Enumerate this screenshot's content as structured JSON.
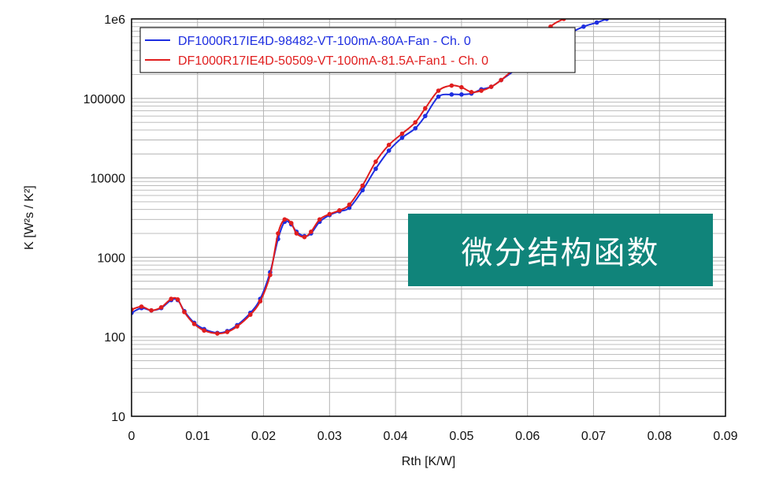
{
  "colors": {
    "background": "#ffffff",
    "grid": "#b4b4b4",
    "axis": "#000000",
    "overlay_bg": "#10847a",
    "overlay_text": "#ffffff"
  },
  "overlay": {
    "text": "微分结构函数"
  },
  "chart_data": {
    "type": "scatter",
    "xlabel": "Rth  [K/W]",
    "ylabel": "K  [W²s / K²]",
    "x_scale": "linear",
    "y_scale": "log",
    "xlim": [
      0,
      0.09
    ],
    "ylim": [
      10,
      1000000
    ],
    "x_ticks": [
      0,
      0.01,
      0.02,
      0.03,
      0.04,
      0.05,
      0.06,
      0.07,
      0.08,
      0.09
    ],
    "x_tick_labels": [
      "0",
      "0.01",
      "0.02",
      "0.03",
      "0.04",
      "0.05",
      "0.06",
      "0.07",
      "0.08",
      "0.09"
    ],
    "y_ticks": [
      10,
      100,
      1000,
      10000,
      100000,
      1000000
    ],
    "y_tick_labels": [
      "10",
      "100",
      "1000",
      "10000",
      "100000",
      "1e6"
    ],
    "grid": true,
    "legend_position": "top-left",
    "series": [
      {
        "name": "DF1000R17IE4D-98482-VT-100mA-80A-Fan - Ch. 0",
        "color": "#1e2ee0",
        "points": [
          [
            0.0,
            200
          ],
          [
            0.0015,
            230
          ],
          [
            0.003,
            215
          ],
          [
            0.0045,
            230
          ],
          [
            0.006,
            290
          ],
          [
            0.007,
            290
          ],
          [
            0.008,
            210
          ],
          [
            0.0095,
            150
          ],
          [
            0.011,
            125
          ],
          [
            0.013,
            112
          ],
          [
            0.0145,
            118
          ],
          [
            0.016,
            140
          ],
          [
            0.018,
            200
          ],
          [
            0.0195,
            300
          ],
          [
            0.021,
            650
          ],
          [
            0.0222,
            1700
          ],
          [
            0.0232,
            2800
          ],
          [
            0.0242,
            2600
          ],
          [
            0.025,
            2100
          ],
          [
            0.0262,
            1850
          ],
          [
            0.0272,
            2000
          ],
          [
            0.0285,
            2800
          ],
          [
            0.03,
            3400
          ],
          [
            0.0315,
            3800
          ],
          [
            0.033,
            4200
          ],
          [
            0.035,
            7000
          ],
          [
            0.037,
            13000
          ],
          [
            0.039,
            22000
          ],
          [
            0.041,
            32000
          ],
          [
            0.043,
            42000
          ],
          [
            0.0445,
            60000
          ],
          [
            0.0465,
            105000
          ],
          [
            0.0485,
            112000
          ],
          [
            0.05,
            112000
          ],
          [
            0.0515,
            115000
          ],
          [
            0.053,
            130000
          ],
          [
            0.0545,
            140000
          ],
          [
            0.056,
            170000
          ],
          [
            0.0585,
            240000
          ],
          [
            0.061,
            350000
          ],
          [
            0.0635,
            500000
          ],
          [
            0.066,
            640000
          ],
          [
            0.0685,
            800000
          ],
          [
            0.0705,
            900000
          ],
          [
            0.072,
            1000000
          ]
        ]
      },
      {
        "name": "DF1000R17IE4D-50509-VT-100mA-81.5A-Fan1 - Ch. 0",
        "color": "#e01e1e",
        "points": [
          [
            0.0,
            220
          ],
          [
            0.0015,
            240
          ],
          [
            0.003,
            215
          ],
          [
            0.0045,
            235
          ],
          [
            0.006,
            300
          ],
          [
            0.007,
            295
          ],
          [
            0.008,
            205
          ],
          [
            0.0095,
            145
          ],
          [
            0.011,
            120
          ],
          [
            0.013,
            110
          ],
          [
            0.0145,
            115
          ],
          [
            0.016,
            135
          ],
          [
            0.018,
            190
          ],
          [
            0.0195,
            280
          ],
          [
            0.021,
            600
          ],
          [
            0.0222,
            2000
          ],
          [
            0.0232,
            3000
          ],
          [
            0.0242,
            2700
          ],
          [
            0.025,
            2000
          ],
          [
            0.0262,
            1800
          ],
          [
            0.0272,
            2100
          ],
          [
            0.0285,
            3000
          ],
          [
            0.03,
            3500
          ],
          [
            0.0315,
            3900
          ],
          [
            0.033,
            4600
          ],
          [
            0.035,
            8000
          ],
          [
            0.037,
            16000
          ],
          [
            0.039,
            26000
          ],
          [
            0.041,
            36000
          ],
          [
            0.043,
            50000
          ],
          [
            0.0445,
            75000
          ],
          [
            0.0465,
            125000
          ],
          [
            0.0485,
            145000
          ],
          [
            0.05,
            138000
          ],
          [
            0.0515,
            120000
          ],
          [
            0.053,
            125000
          ],
          [
            0.0545,
            140000
          ],
          [
            0.056,
            170000
          ],
          [
            0.0585,
            260000
          ],
          [
            0.061,
            420000
          ],
          [
            0.0635,
            800000
          ],
          [
            0.0655,
            1000000
          ]
        ]
      }
    ]
  }
}
